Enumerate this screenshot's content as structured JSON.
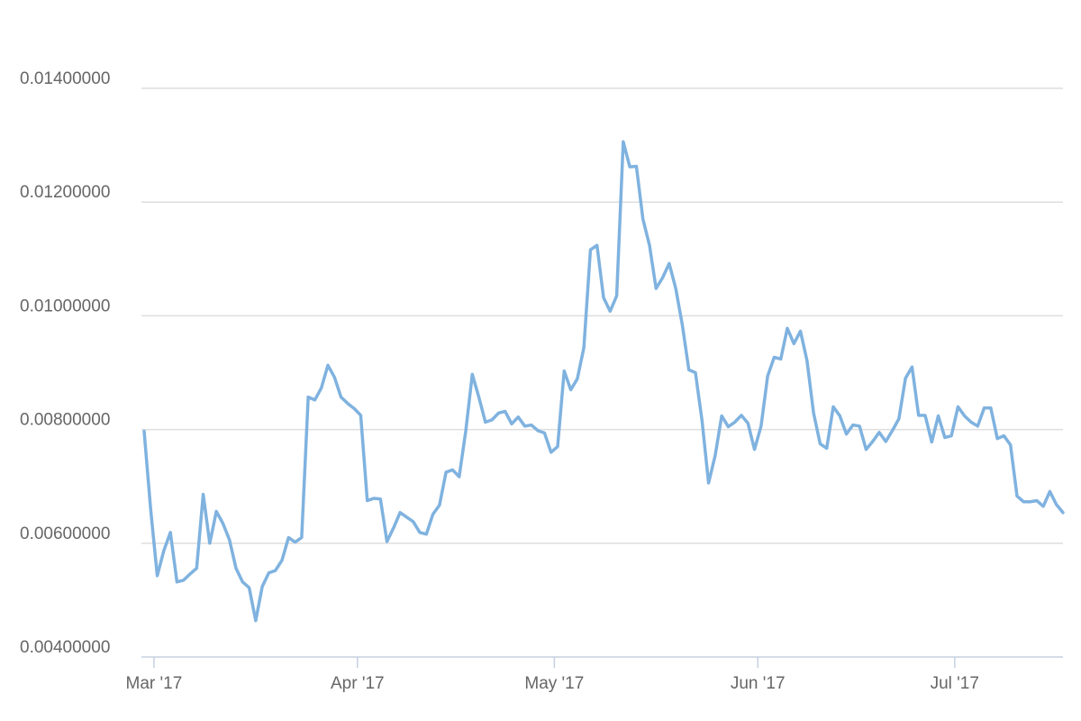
{
  "chart_data": {
    "type": "line",
    "values": [
      0.00797,
      0.00659,
      0.00543,
      0.00587,
      0.00619,
      0.00532,
      0.00535,
      0.00546,
      0.00556,
      0.00686,
      0.006,
      0.00656,
      0.00635,
      0.00606,
      0.00556,
      0.00532,
      0.00522,
      0.00464,
      0.00524,
      0.00548,
      0.00552,
      0.0057,
      0.0061,
      0.00602,
      0.0061,
      0.00857,
      0.00852,
      0.00873,
      0.00913,
      0.00892,
      0.00857,
      0.00846,
      0.00837,
      0.00825,
      0.00675,
      0.00679,
      0.00678,
      0.00603,
      0.00627,
      0.00654,
      0.00646,
      0.00638,
      0.00619,
      0.00616,
      0.00651,
      0.00667,
      0.00725,
      0.00729,
      0.00717,
      0.00797,
      0.00897,
      0.00857,
      0.00813,
      0.00817,
      0.00829,
      0.00832,
      0.0081,
      0.00822,
      0.00806,
      0.00808,
      0.00798,
      0.00794,
      0.0076,
      0.0077,
      0.00903,
      0.0087,
      0.00889,
      0.00944,
      0.01116,
      0.01124,
      0.01032,
      0.01008,
      0.01035,
      0.01306,
      0.01262,
      0.01263,
      0.0117,
      0.01124,
      0.01048,
      0.01067,
      0.01092,
      0.01048,
      0.00984,
      0.00905,
      0.009,
      0.00816,
      0.00706,
      0.00754,
      0.00824,
      0.00805,
      0.00813,
      0.00825,
      0.00811,
      0.00765,
      0.00806,
      0.00894,
      0.00927,
      0.00924,
      0.00978,
      0.00951,
      0.00973,
      0.00921,
      0.00829,
      0.00775,
      0.00767,
      0.0084,
      0.00824,
      0.00792,
      0.00808,
      0.00806,
      0.00765,
      0.00779,
      0.00795,
      0.00779,
      0.00798,
      0.00819,
      0.0089,
      0.0091,
      0.00825,
      0.00825,
      0.00778,
      0.00824,
      0.00786,
      0.00789,
      0.0084,
      0.00824,
      0.00813,
      0.00806,
      0.00838,
      0.00838,
      0.00784,
      0.00789,
      0.00773,
      0.00683,
      0.00673,
      0.00673,
      0.00675,
      0.00665,
      0.00691,
      0.00668,
      0.00654
    ],
    "color": "#7fb2df",
    "xlim": [
      0,
      140
    ],
    "xticks": [
      {
        "value": 1.5,
        "label": "Mar '17"
      },
      {
        "value": 32.5,
        "label": "Apr '17"
      },
      {
        "value": 62.5,
        "label": "May '17"
      },
      {
        "value": 93.5,
        "label": "Jun '17"
      },
      {
        "value": 123.5,
        "label": "Jul '17"
      }
    ],
    "ylim": [
      0.004,
      0.014
    ],
    "yticks": [
      {
        "value": 0.004,
        "label": "0.00400000"
      },
      {
        "value": 0.006,
        "label": "0.00600000"
      },
      {
        "value": 0.008,
        "label": "0.00800000"
      },
      {
        "value": 0.01,
        "label": "0.01000000"
      },
      {
        "value": 0.012,
        "label": "0.01200000"
      },
      {
        "value": 0.014,
        "label": "0.01400000"
      }
    ],
    "grid": true
  }
}
